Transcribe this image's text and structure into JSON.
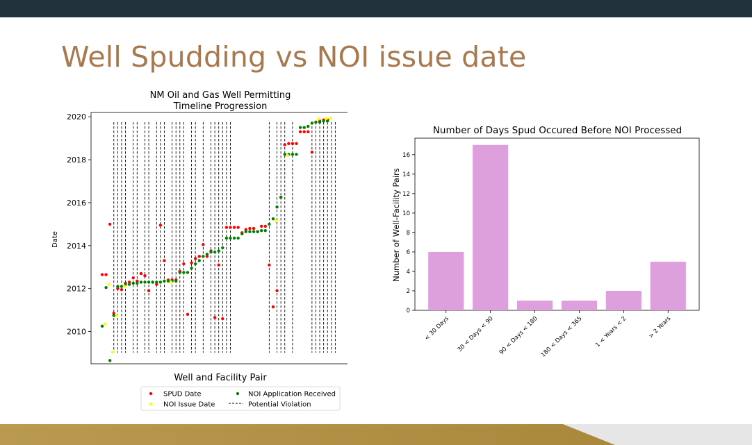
{
  "slide": {
    "title": "Well Spudding vs NOI issue date"
  },
  "colors": {
    "topbar": "#22323c",
    "title": "#a8784e",
    "bars": "#dda0dd",
    "spud": "#ff0000",
    "noi_issue": "#ffff00",
    "noi_received": "#008000",
    "gold_band": "#b99a4e"
  },
  "chart_data": [
    {
      "type": "scatter",
      "title_lines": [
        "NM Oil and Gas Well Permitting",
        "Timeline Progression"
      ],
      "xlabel": "Well and Facility Pair",
      "ylabel": "Date",
      "ylim": [
        2008.5,
        2020.2
      ],
      "yticks": [
        "2010",
        "2012",
        "2014",
        "2016",
        "2018",
        "2020"
      ],
      "grid": false,
      "legend_position": "lower-center (outside)",
      "legend": {
        "spud": "SPUD Date",
        "noi_issue": "NOI Issue Date",
        "noi_received": "NOI Application Received",
        "violation": "Potential Violation"
      },
      "x_count": 62,
      "spud": [
        [
          0,
          2012.65
        ],
        [
          1,
          2012.65
        ],
        [
          2,
          2015.0
        ],
        [
          3,
          2010.85
        ],
        [
          4,
          2012.0
        ],
        [
          5,
          2011.95
        ],
        [
          6,
          2012.25
        ],
        [
          7,
          2012.3
        ],
        [
          8,
          2012.5
        ],
        [
          9,
          2012.35
        ],
        [
          10,
          2012.7
        ],
        [
          11,
          2012.6
        ],
        [
          12,
          2011.9
        ],
        [
          13,
          2012.3
        ],
        [
          14,
          2012.2
        ],
        [
          15,
          2014.95
        ],
        [
          16,
          2013.3
        ],
        [
          17,
          2012.4
        ],
        [
          18,
          2012.4
        ],
        [
          19,
          2012.4
        ],
        [
          20,
          2012.8
        ],
        [
          21,
          2013.15
        ],
        [
          22,
          2010.8
        ],
        [
          23,
          2013.2
        ],
        [
          24,
          2013.4
        ],
        [
          25,
          2013.5
        ],
        [
          26,
          2014.05
        ],
        [
          27,
          2013.5
        ],
        [
          28,
          2013.75
        ],
        [
          29,
          2010.65
        ],
        [
          30,
          2013.1
        ],
        [
          31,
          2010.6
        ],
        [
          32,
          2014.85
        ],
        [
          33,
          2014.85
        ],
        [
          34,
          2014.85
        ],
        [
          35,
          2014.85
        ],
        [
          36,
          2014.6
        ],
        [
          37,
          2014.75
        ],
        [
          38,
          2014.8
        ],
        [
          39,
          2014.8
        ],
        [
          40,
          2014.65
        ],
        [
          41,
          2014.9
        ],
        [
          42,
          2014.9
        ],
        [
          43,
          2013.1
        ],
        [
          44,
          2011.15
        ],
        [
          45,
          2011.9
        ],
        [
          46,
          2016.25
        ],
        [
          47,
          2018.7
        ],
        [
          48,
          2018.75
        ],
        [
          49,
          2018.75
        ],
        [
          50,
          2018.75
        ],
        [
          51,
          2019.3
        ],
        [
          52,
          2019.3
        ],
        [
          53,
          2019.3
        ],
        [
          54,
          2018.35
        ],
        [
          55,
          2019.75
        ],
        [
          56,
          2019.8
        ],
        [
          57,
          2019.85
        ],
        [
          58,
          2019.85
        ]
      ],
      "noi_issue": [
        [
          0,
          2010.35
        ],
        [
          1,
          2012.2
        ],
        [
          2,
          2009.05
        ],
        [
          3,
          2010.75
        ],
        [
          5,
          2012.1
        ],
        [
          17,
          2012.3
        ],
        [
          44,
          2015.15
        ],
        [
          47,
          2018.2
        ],
        [
          55,
          2019.9
        ],
        [
          57,
          2019.92
        ],
        [
          58,
          2019.92
        ]
      ],
      "noi_received": [
        [
          0,
          2010.25
        ],
        [
          1,
          2012.05
        ],
        [
          2,
          2008.65
        ],
        [
          3,
          2010.75
        ],
        [
          4,
          2012.1
        ],
        [
          5,
          2012.1
        ],
        [
          6,
          2012.2
        ],
        [
          7,
          2012.2
        ],
        [
          8,
          2012.25
        ],
        [
          9,
          2012.25
        ],
        [
          10,
          2012.3
        ],
        [
          11,
          2012.3
        ],
        [
          12,
          2012.3
        ],
        [
          13,
          2012.3
        ],
        [
          14,
          2012.3
        ],
        [
          15,
          2012.3
        ],
        [
          16,
          2012.35
        ],
        [
          17,
          2012.35
        ],
        [
          18,
          2012.35
        ],
        [
          19,
          2012.35
        ],
        [
          20,
          2012.75
        ],
        [
          21,
          2012.75
        ],
        [
          22,
          2012.75
        ],
        [
          23,
          2012.95
        ],
        [
          24,
          2013.15
        ],
        [
          25,
          2013.3
        ],
        [
          26,
          2013.5
        ],
        [
          27,
          2013.6
        ],
        [
          28,
          2013.7
        ],
        [
          29,
          2013.7
        ],
        [
          30,
          2013.75
        ],
        [
          31,
          2013.9
        ],
        [
          32,
          2014.35
        ],
        [
          33,
          2014.35
        ],
        [
          34,
          2014.35
        ],
        [
          35,
          2014.35
        ],
        [
          36,
          2014.55
        ],
        [
          37,
          2014.65
        ],
        [
          38,
          2014.65
        ],
        [
          39,
          2014.65
        ],
        [
          40,
          2014.65
        ],
        [
          41,
          2014.7
        ],
        [
          42,
          2014.7
        ],
        [
          43,
          2015.0
        ],
        [
          44,
          2015.25
        ],
        [
          45,
          2015.8
        ],
        [
          46,
          2016.25
        ],
        [
          47,
          2018.25
        ],
        [
          48,
          2018.25
        ],
        [
          49,
          2018.25
        ],
        [
          50,
          2018.25
        ],
        [
          51,
          2019.5
        ],
        [
          52,
          2019.5
        ],
        [
          53,
          2019.55
        ],
        [
          54,
          2019.7
        ],
        [
          55,
          2019.75
        ],
        [
          56,
          2019.75
        ],
        [
          57,
          2019.8
        ],
        [
          58,
          2019.8
        ]
      ],
      "violations": [
        3,
        4,
        5,
        6,
        8,
        9,
        11,
        12,
        14,
        15,
        16,
        18,
        19,
        20,
        21,
        23,
        24,
        26,
        28,
        29,
        30,
        31,
        32,
        33,
        43,
        45,
        46,
        47,
        49,
        54,
        55,
        56,
        57,
        58,
        59,
        60
      ]
    },
    {
      "type": "bar",
      "title": "Number of Days Spud Occured Before NOI Processed",
      "ylabel": "Number of Well-Facility Pairs",
      "categories": [
        "< 30 Days",
        "30 < Days < 90",
        "90 < Days < 180",
        "180 < Days < 365",
        "1 < Years < 2",
        "> 2 Years"
      ],
      "values": [
        6,
        17,
        1,
        1,
        2,
        5
      ],
      "ylim": [
        0,
        17.7
      ],
      "yticks": [
        "0",
        "2",
        "4",
        "6",
        "8",
        "10",
        "12",
        "14",
        "16"
      ],
      "grid": false
    }
  ]
}
